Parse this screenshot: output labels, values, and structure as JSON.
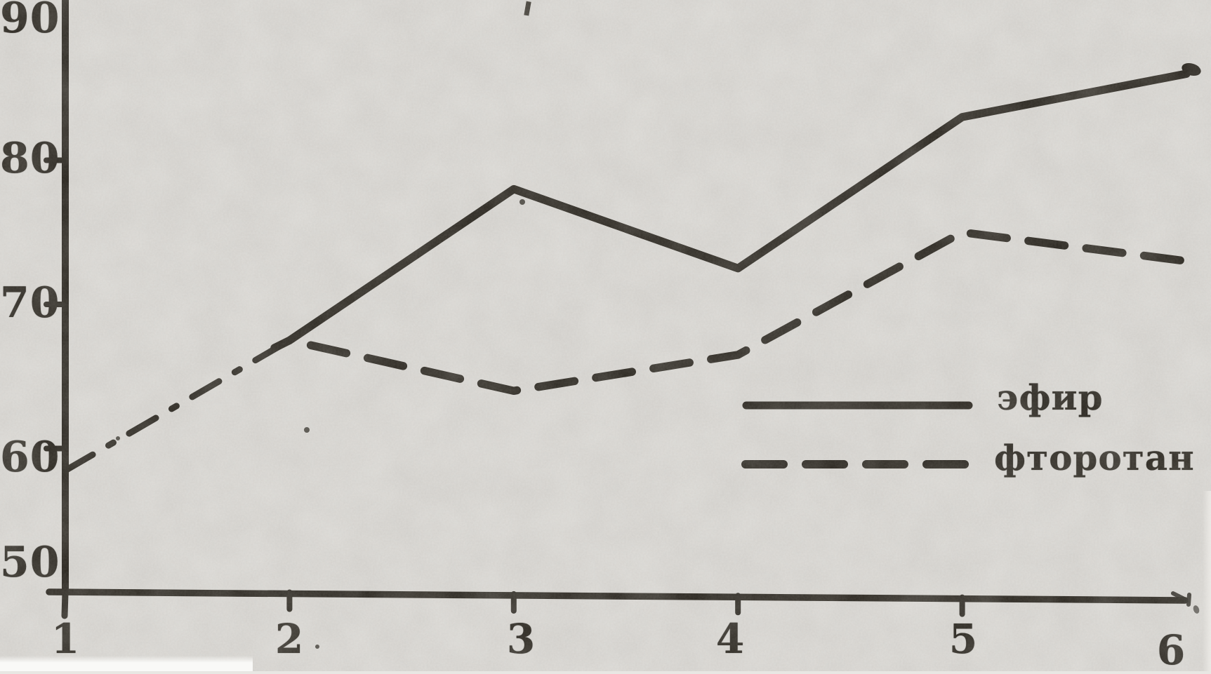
{
  "figure": {
    "background_color": "#d8d6d2",
    "ink_color": "#242019",
    "description_visible_text_only": "line chart, two series, no title or axis captions visible"
  },
  "chart_data": {
    "type": "line",
    "title": "",
    "xlabel": "",
    "ylabel": "",
    "x_tick_labels": [
      "1",
      "2",
      "3",
      "4",
      "5",
      "6"
    ],
    "y_tick_labels": [
      "90",
      "80",
      "70",
      "60",
      "50"
    ],
    "xlim": [
      1,
      6
    ],
    "ylim": [
      50,
      90
    ],
    "grid": false,
    "legend_position": "right-center",
    "series": [
      {
        "name": "эфир",
        "line_style": "solid",
        "x": [
          2,
          3,
          4,
          5,
          6
        ],
        "values": [
          67.5,
          78,
          72.5,
          83,
          86
        ]
      },
      {
        "name": "фторотан",
        "line_style": "dashed",
        "segment_1_to_2_style": "dash-dot",
        "x": [
          1,
          2,
          3,
          4,
          5,
          6
        ],
        "values": [
          58.5,
          67.5,
          64,
          66.5,
          75,
          73
        ]
      }
    ]
  },
  "legend": {
    "items": [
      {
        "label": "эфир",
        "sample": "solid-line"
      },
      {
        "label": "фторотан",
        "sample": "dashed-line"
      }
    ]
  }
}
